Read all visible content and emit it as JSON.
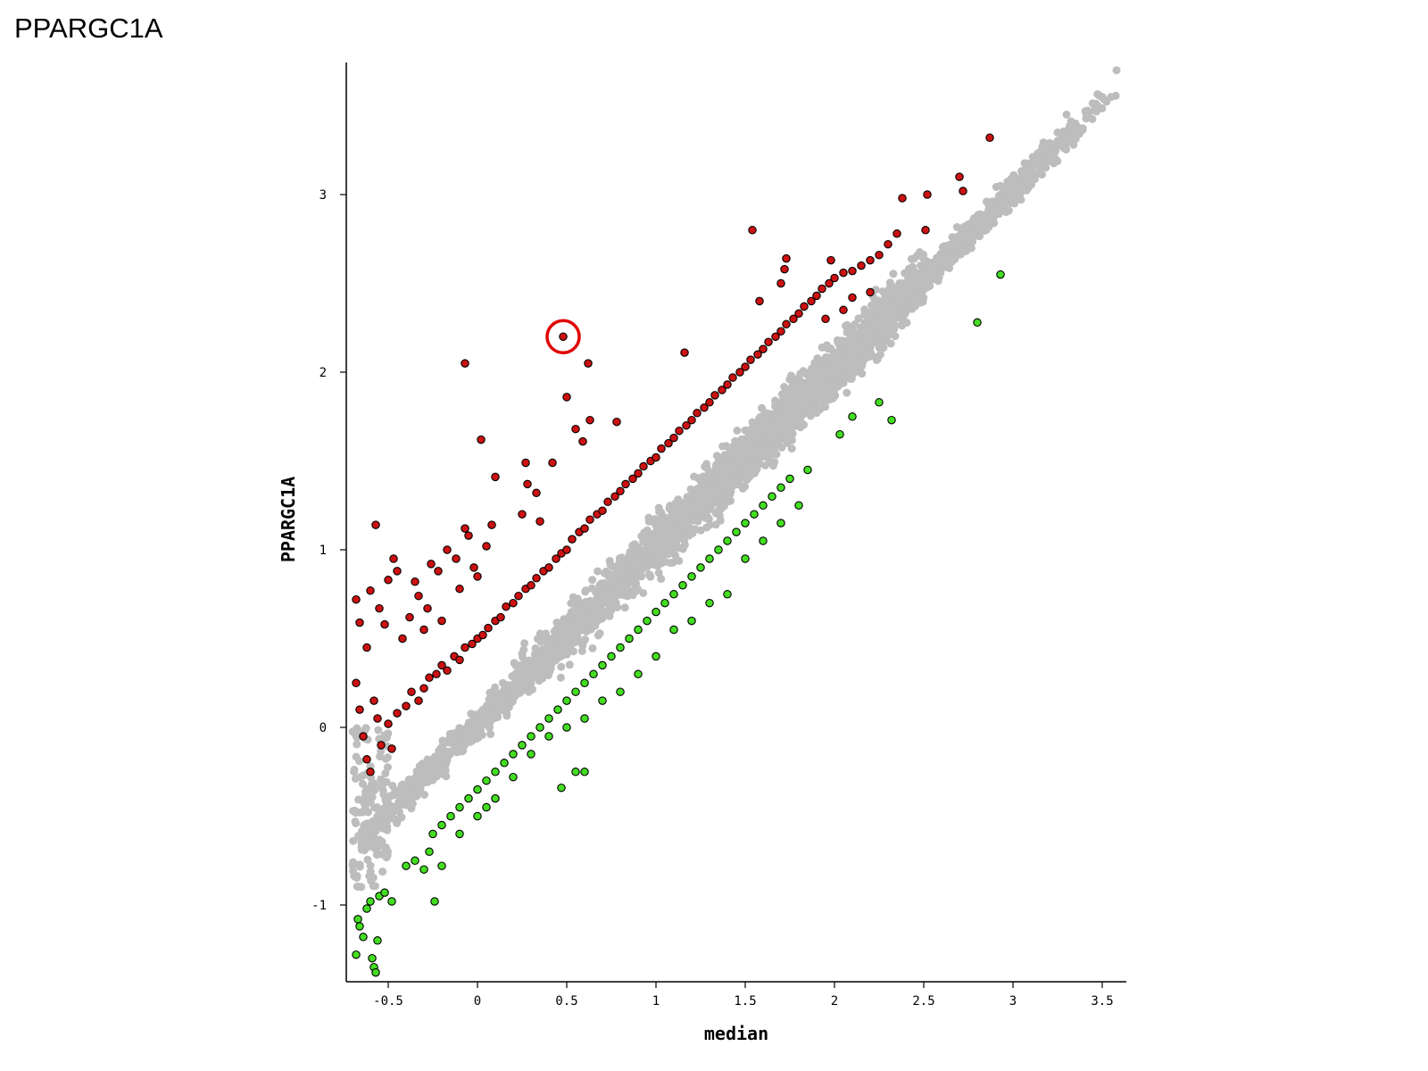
{
  "page_title": "PPARGC1A",
  "chart_data": {
    "type": "scatter",
    "title": "",
    "xlabel": "median",
    "ylabel": "PPARGC1A",
    "xlim": [
      -0.75,
      3.6
    ],
    "ylim": [
      -1.4,
      3.75
    ],
    "x_ticks": [
      -0.5,
      0,
      0.5,
      1,
      1.5,
      2,
      2.5,
      3,
      3.5
    ],
    "x_tick_labels": [
      "-0.5",
      "0",
      "0.5",
      "1",
      "1.5",
      "2",
      "2.5",
      "3",
      "3.5"
    ],
    "y_ticks": [
      -1,
      0,
      1,
      2,
      3
    ],
    "y_tick_labels": [
      "-1",
      "0",
      "1",
      "2",
      "3"
    ],
    "grid": false,
    "legend": "none",
    "colors": {
      "not_significant": "#bdbdbd",
      "higher": "#cc1111",
      "lower": "#44dd22",
      "marker_edge": "#000000",
      "highlight_circle": "#e00000"
    },
    "background_band": {
      "description": "dense cloud of non-significant points along the diagonal",
      "x_range": [
        -0.7,
        3.6
      ],
      "center_line": {
        "slope": 1.0,
        "intercept": 0.02
      },
      "half_width": 0.28
    },
    "series": [
      {
        "group": "higher",
        "points": [
          [
            -0.68,
            0.72
          ],
          [
            -0.66,
            0.59
          ],
          [
            -0.62,
            0.45
          ],
          [
            -0.6,
            0.77
          ],
          [
            -0.57,
            1.14
          ],
          [
            -0.55,
            0.67
          ],
          [
            -0.52,
            0.58
          ],
          [
            -0.5,
            0.83
          ],
          [
            -0.47,
            0.95
          ],
          [
            -0.45,
            0.88
          ],
          [
            -0.42,
            0.5
          ],
          [
            -0.38,
            0.62
          ],
          [
            -0.35,
            0.82
          ],
          [
            -0.33,
            0.74
          ],
          [
            -0.3,
            0.55
          ],
          [
            -0.28,
            0.67
          ],
          [
            -0.26,
            0.92
          ],
          [
            -0.22,
            0.88
          ],
          [
            -0.2,
            0.6
          ],
          [
            -0.17,
            1.0
          ],
          [
            -0.12,
            0.95
          ],
          [
            -0.1,
            0.78
          ],
          [
            -0.07,
            1.12
          ],
          [
            -0.05,
            1.08
          ],
          [
            -0.02,
            0.9
          ],
          [
            0.0,
            0.85
          ],
          [
            0.05,
            1.02
          ],
          [
            0.08,
            1.14
          ],
          [
            0.02,
            1.62
          ],
          [
            0.1,
            1.41
          ],
          [
            -0.07,
            2.05
          ],
          [
            0.27,
            1.49
          ],
          [
            0.28,
            1.37
          ],
          [
            0.33,
            1.32
          ],
          [
            0.42,
            1.49
          ],
          [
            0.5,
            1.86
          ],
          [
            0.48,
            2.2
          ],
          [
            0.62,
            2.05
          ],
          [
            0.55,
            1.68
          ],
          [
            0.59,
            1.61
          ],
          [
            0.63,
            1.73
          ],
          [
            0.78,
            1.72
          ],
          [
            0.35,
            1.16
          ],
          [
            0.25,
            1.2
          ],
          [
            1.16,
            2.11
          ],
          [
            1.54,
            2.8
          ],
          [
            1.58,
            2.4
          ],
          [
            1.7,
            2.5
          ],
          [
            1.72,
            2.58
          ],
          [
            1.73,
            2.64
          ],
          [
            1.98,
            2.63
          ],
          [
            2.38,
            2.98
          ],
          [
            2.51,
            2.8
          ],
          [
            2.52,
            3.0
          ],
          [
            2.7,
            3.1
          ],
          [
            2.72,
            3.02
          ],
          [
            2.87,
            3.32
          ],
          [
            -0.68,
            0.25
          ],
          [
            -0.66,
            0.1
          ],
          [
            -0.64,
            -0.05
          ],
          [
            -0.62,
            -0.18
          ],
          [
            -0.6,
            -0.25
          ],
          [
            -0.58,
            0.15
          ],
          [
            -0.56,
            0.05
          ],
          [
            -0.54,
            -0.1
          ],
          [
            -0.5,
            0.02
          ],
          [
            -0.48,
            -0.12
          ],
          [
            -0.45,
            0.08
          ],
          [
            -0.4,
            0.12
          ],
          [
            -0.37,
            0.2
          ],
          [
            -0.33,
            0.15
          ],
          [
            -0.3,
            0.22
          ],
          [
            -0.27,
            0.28
          ],
          [
            -0.23,
            0.3
          ],
          [
            -0.2,
            0.35
          ],
          [
            -0.17,
            0.32
          ],
          [
            -0.13,
            0.4
          ],
          [
            -0.1,
            0.38
          ],
          [
            -0.07,
            0.45
          ],
          [
            -0.03,
            0.47
          ],
          [
            0.0,
            0.5
          ],
          [
            0.03,
            0.52
          ],
          [
            0.06,
            0.56
          ],
          [
            0.1,
            0.6
          ],
          [
            0.13,
            0.62
          ],
          [
            0.16,
            0.68
          ],
          [
            0.2,
            0.7
          ],
          [
            0.23,
            0.74
          ],
          [
            0.27,
            0.78
          ],
          [
            0.3,
            0.8
          ],
          [
            0.33,
            0.84
          ],
          [
            0.37,
            0.88
          ],
          [
            0.4,
            0.9
          ],
          [
            0.44,
            0.95
          ],
          [
            0.47,
            0.98
          ],
          [
            0.5,
            1.0
          ],
          [
            0.53,
            1.06
          ],
          [
            0.57,
            1.1
          ],
          [
            0.6,
            1.12
          ],
          [
            0.63,
            1.17
          ],
          [
            0.67,
            1.2
          ],
          [
            0.7,
            1.22
          ],
          [
            0.73,
            1.27
          ],
          [
            0.77,
            1.3
          ],
          [
            0.8,
            1.33
          ],
          [
            0.83,
            1.37
          ],
          [
            0.87,
            1.4
          ],
          [
            0.9,
            1.43
          ],
          [
            0.93,
            1.47
          ],
          [
            0.97,
            1.5
          ],
          [
            1.0,
            1.52
          ],
          [
            1.03,
            1.57
          ],
          [
            1.07,
            1.6
          ],
          [
            1.1,
            1.63
          ],
          [
            1.13,
            1.67
          ],
          [
            1.17,
            1.7
          ],
          [
            1.2,
            1.73
          ],
          [
            1.23,
            1.77
          ],
          [
            1.27,
            1.8
          ],
          [
            1.3,
            1.83
          ],
          [
            1.33,
            1.87
          ],
          [
            1.37,
            1.9
          ],
          [
            1.4,
            1.93
          ],
          [
            1.43,
            1.97
          ],
          [
            1.47,
            2.0
          ],
          [
            1.5,
            2.03
          ],
          [
            1.53,
            2.07
          ],
          [
            1.57,
            2.1
          ],
          [
            1.6,
            2.13
          ],
          [
            1.63,
            2.17
          ],
          [
            1.67,
            2.2
          ],
          [
            1.7,
            2.23
          ],
          [
            1.73,
            2.27
          ],
          [
            1.77,
            2.3
          ],
          [
            1.8,
            2.33
          ],
          [
            1.83,
            2.37
          ],
          [
            1.87,
            2.4
          ],
          [
            1.9,
            2.43
          ],
          [
            1.93,
            2.47
          ],
          [
            1.97,
            2.5
          ],
          [
            2.0,
            2.53
          ],
          [
            2.05,
            2.56
          ],
          [
            2.1,
            2.57
          ],
          [
            2.15,
            2.6
          ],
          [
            2.2,
            2.63
          ],
          [
            2.25,
            2.66
          ],
          [
            2.3,
            2.72
          ],
          [
            2.35,
            2.78
          ],
          [
            2.2,
            2.45
          ],
          [
            2.1,
            2.42
          ],
          [
            2.05,
            2.35
          ],
          [
            1.95,
            2.3
          ]
        ]
      },
      {
        "group": "lower",
        "points": [
          [
            -0.68,
            -1.28
          ],
          [
            -0.67,
            -1.08
          ],
          [
            -0.66,
            -1.12
          ],
          [
            -0.64,
            -1.18
          ],
          [
            -0.62,
            -1.02
          ],
          [
            -0.6,
            -0.98
          ],
          [
            -0.59,
            -1.3
          ],
          [
            -0.58,
            -1.35
          ],
          [
            -0.57,
            -1.38
          ],
          [
            -0.56,
            -1.2
          ],
          [
            -0.55,
            -0.95
          ],
          [
            -0.52,
            -0.93
          ],
          [
            -0.48,
            -0.98
          ],
          [
            -0.4,
            -0.78
          ],
          [
            -0.35,
            -0.75
          ],
          [
            -0.3,
            -0.8
          ],
          [
            -0.27,
            -0.7
          ],
          [
            -0.24,
            -0.98
          ],
          [
            -0.2,
            -0.78
          ],
          [
            -0.1,
            -0.6
          ],
          [
            0.0,
            -0.5
          ],
          [
            0.05,
            -0.45
          ],
          [
            0.1,
            -0.4
          ],
          [
            0.47,
            -0.34
          ],
          [
            0.6,
            -0.25
          ],
          [
            0.55,
            -0.25
          ],
          [
            -0.25,
            -0.6
          ],
          [
            -0.2,
            -0.55
          ],
          [
            -0.15,
            -0.5
          ],
          [
            -0.1,
            -0.45
          ],
          [
            -0.05,
            -0.4
          ],
          [
            0.0,
            -0.35
          ],
          [
            0.05,
            -0.3
          ],
          [
            0.1,
            -0.25
          ],
          [
            0.15,
            -0.2
          ],
          [
            0.2,
            -0.15
          ],
          [
            0.25,
            -0.1
          ],
          [
            0.3,
            -0.05
          ],
          [
            0.35,
            0.0
          ],
          [
            0.4,
            0.05
          ],
          [
            0.45,
            0.1
          ],
          [
            0.5,
            0.15
          ],
          [
            0.55,
            0.2
          ],
          [
            0.6,
            0.25
          ],
          [
            0.65,
            0.3
          ],
          [
            0.7,
            0.35
          ],
          [
            0.75,
            0.4
          ],
          [
            0.8,
            0.45
          ],
          [
            0.85,
            0.5
          ],
          [
            0.9,
            0.55
          ],
          [
            0.95,
            0.6
          ],
          [
            1.0,
            0.65
          ],
          [
            1.05,
            0.7
          ],
          [
            1.1,
            0.75
          ],
          [
            1.15,
            0.8
          ],
          [
            1.2,
            0.85
          ],
          [
            1.25,
            0.9
          ],
          [
            1.3,
            0.95
          ],
          [
            1.35,
            1.0
          ],
          [
            1.4,
            1.05
          ],
          [
            1.45,
            1.1
          ],
          [
            1.5,
            1.15
          ],
          [
            1.55,
            1.2
          ],
          [
            1.6,
            1.25
          ],
          [
            1.65,
            1.3
          ],
          [
            1.7,
            1.35
          ],
          [
            1.75,
            1.4
          ],
          [
            1.85,
            1.45
          ],
          [
            0.2,
            -0.28
          ],
          [
            0.3,
            -0.15
          ],
          [
            0.4,
            -0.05
          ],
          [
            0.5,
            0.0
          ],
          [
            0.6,
            0.05
          ],
          [
            0.7,
            0.15
          ],
          [
            0.8,
            0.2
          ],
          [
            0.9,
            0.3
          ],
          [
            1.0,
            0.4
          ],
          [
            1.1,
            0.55
          ],
          [
            1.2,
            0.6
          ],
          [
            1.3,
            0.7
          ],
          [
            1.4,
            0.75
          ],
          [
            1.5,
            0.95
          ],
          [
            1.6,
            1.05
          ],
          [
            1.7,
            1.15
          ],
          [
            1.8,
            1.25
          ],
          [
            2.03,
            1.65
          ],
          [
            2.1,
            1.75
          ],
          [
            2.25,
            1.83
          ],
          [
            2.32,
            1.73
          ],
          [
            2.8,
            2.28
          ],
          [
            2.93,
            2.55
          ]
        ]
      }
    ],
    "annotations": [
      {
        "type": "circle",
        "x": 0.48,
        "y": 2.2,
        "color": "#e00000"
      }
    ]
  }
}
